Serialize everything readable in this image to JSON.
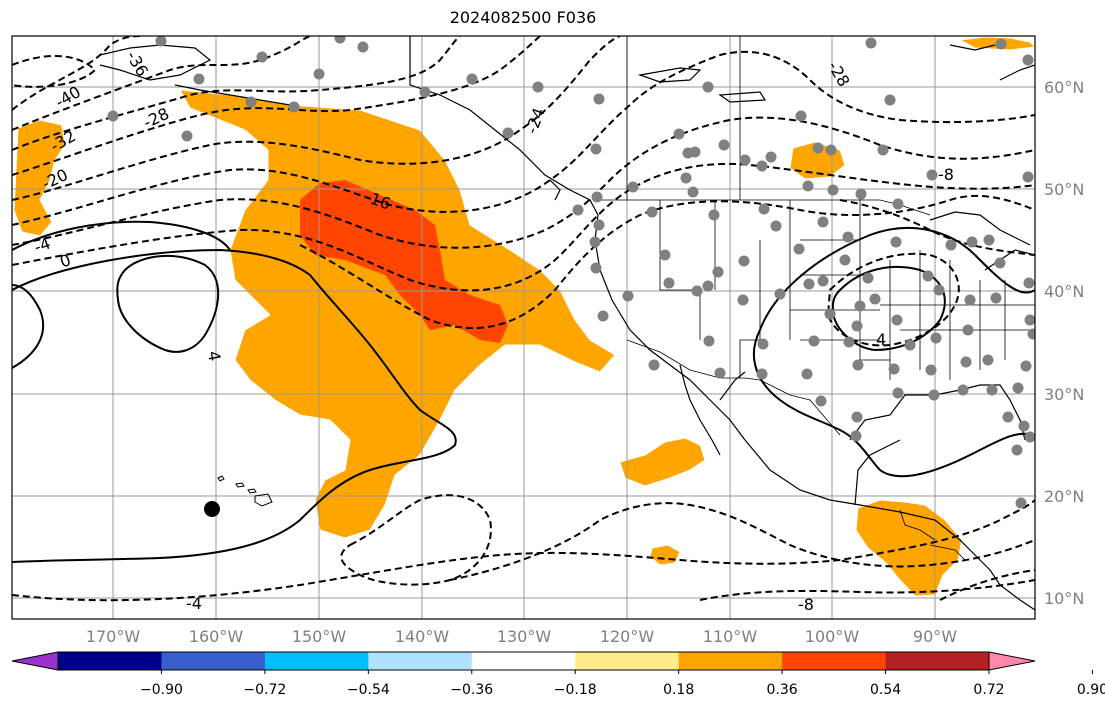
{
  "title": "2024082500 F036",
  "map": {
    "lon_range": [
      -180,
      -80
    ],
    "lat_range": [
      8,
      65
    ],
    "lon_ticks": [
      {
        "v": -170,
        "label": "170°W"
      },
      {
        "v": -160,
        "label": "160°W"
      },
      {
        "v": -150,
        "label": "150°W"
      },
      {
        "v": -140,
        "label": "140°W"
      },
      {
        "v": -130,
        "label": "130°W"
      },
      {
        "v": -120,
        "label": "120°W"
      },
      {
        "v": -110,
        "label": "110°W"
      },
      {
        "v": -100,
        "label": "100°W"
      },
      {
        "v": -90,
        "label": "90°W"
      }
    ],
    "lat_ticks": [
      {
        "v": 10,
        "label": "10°N"
      },
      {
        "v": 20,
        "label": "20°N"
      },
      {
        "v": 30,
        "label": "30°N"
      },
      {
        "v": 40,
        "label": "40°N"
      },
      {
        "v": 50,
        "label": "50°N"
      },
      {
        "v": 60,
        "label": "60°N"
      }
    ],
    "contour_labels": [
      "-40",
      "-36",
      "-32",
      "-28",
      "-24",
      "-20",
      "-16",
      "-8",
      "-4",
      "0",
      "4",
      "-4",
      "4",
      "-28",
      "-8"
    ],
    "colors": {
      "shade_036": "#ffa500",
      "shade_054": "#ff4500",
      "station": "#808080",
      "grid": "#999999"
    }
  },
  "colorbar": {
    "colors": [
      "#9932cc",
      "#00008b",
      "#3a5fcd",
      "#00bfff",
      "#b0e2ff",
      "#ffffff",
      "#ffec8b",
      "#ffa500",
      "#ff4500",
      "#b22222",
      "#ff88aa"
    ],
    "labels": [
      "−0.90",
      "−0.72",
      "−0.54",
      "−0.36",
      "−0.18",
      "0.18",
      "0.36",
      "0.54",
      "0.72",
      "0.90"
    ]
  }
}
